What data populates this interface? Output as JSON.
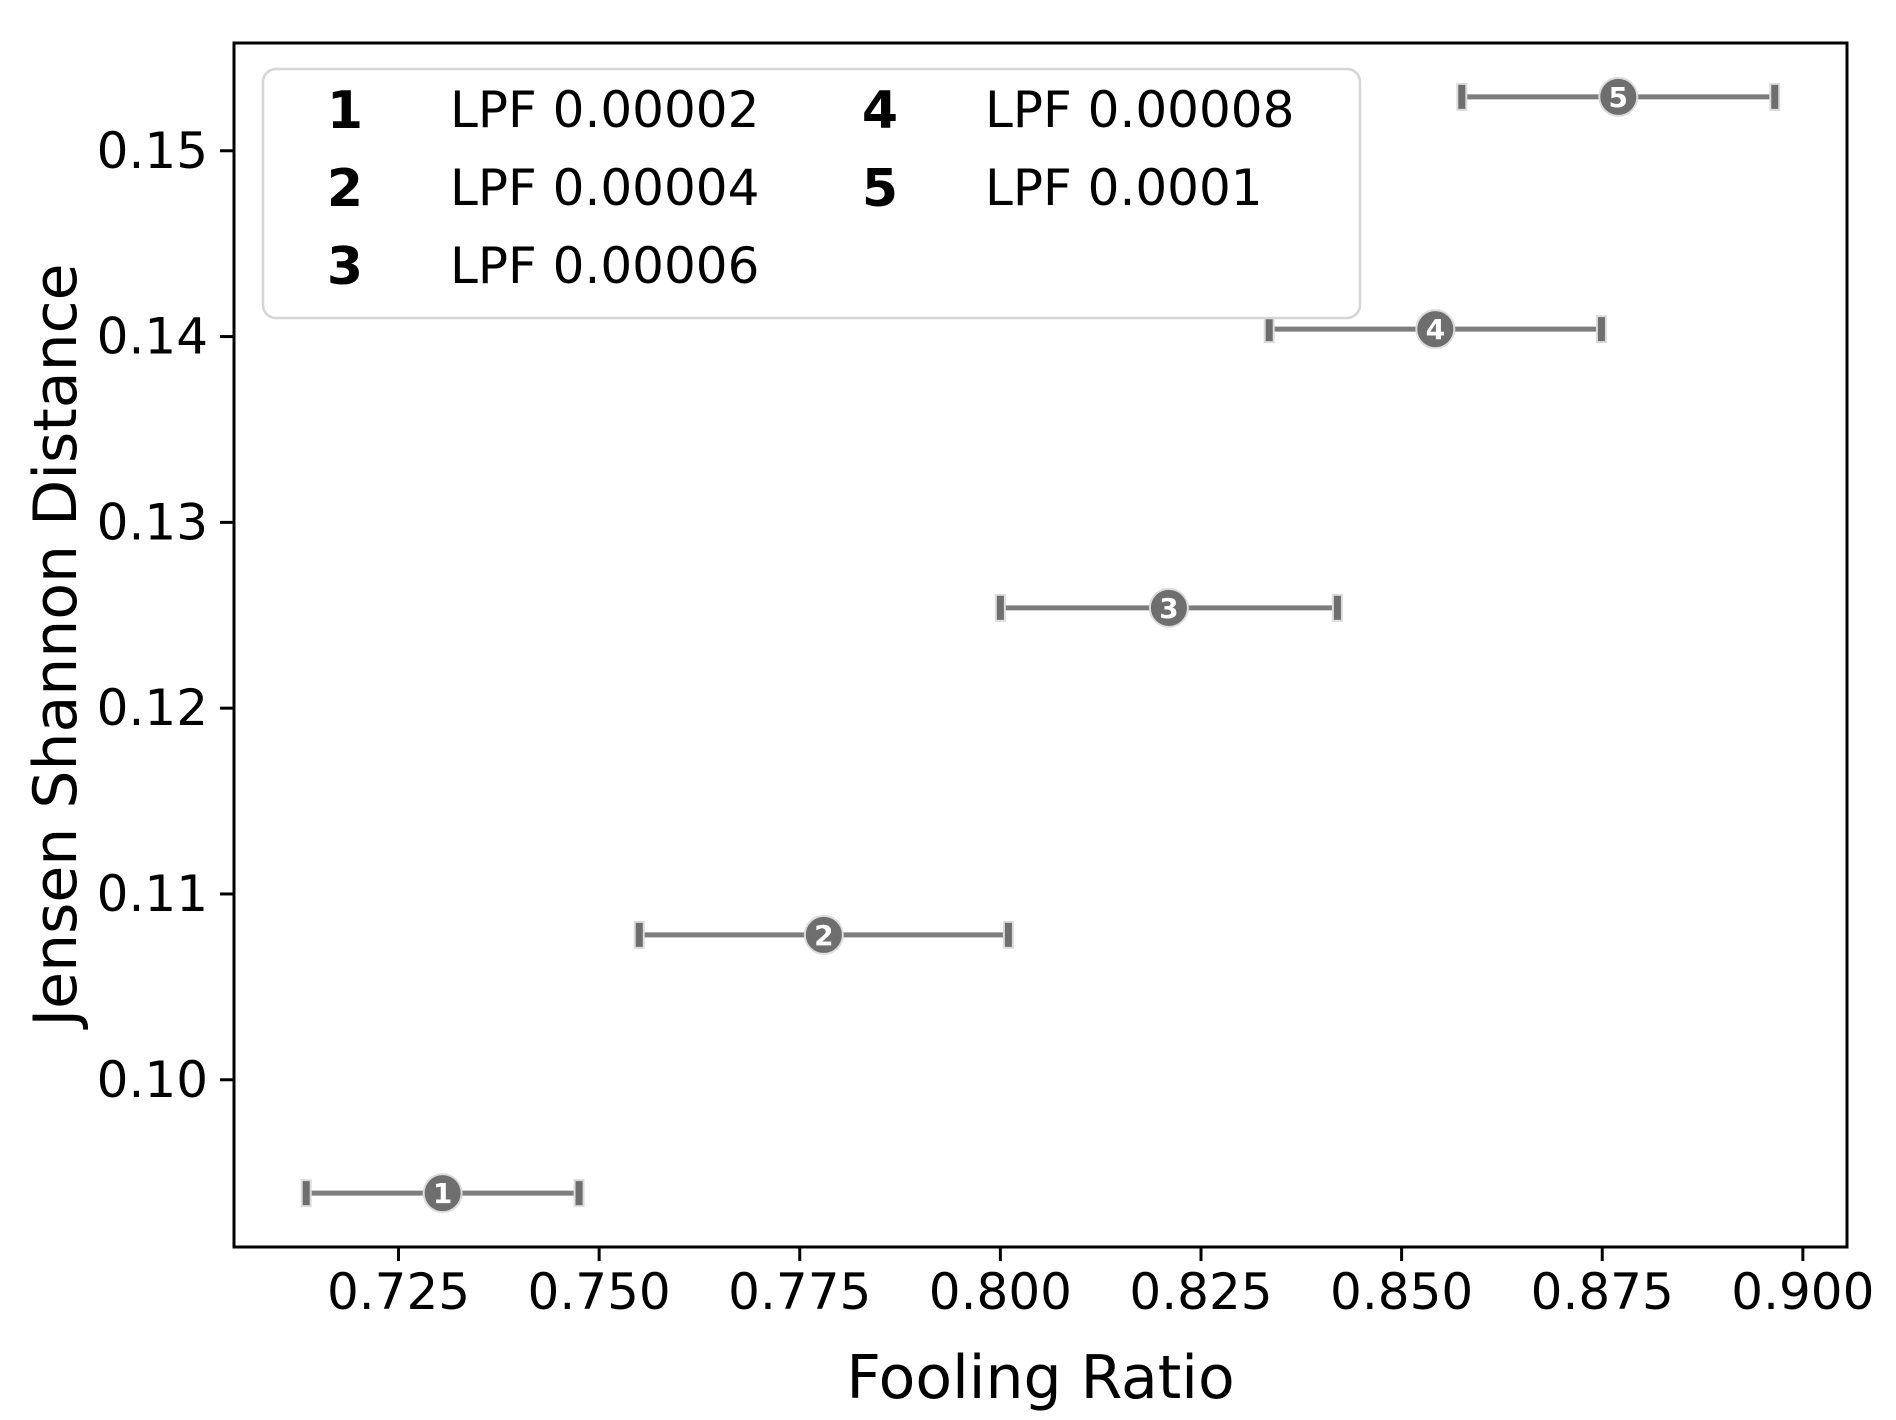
{
  "chart_data": {
    "type": "scatter",
    "title": "",
    "xlabel": "Fooling Ratio",
    "ylabel": "Jensen Shannon Distance",
    "xlim": [
      0.7045,
      0.9055
    ],
    "ylim": [
      0.091,
      0.1558
    ],
    "x_ticks": [
      0.725,
      0.75,
      0.775,
      0.8,
      0.825,
      0.85,
      0.875,
      0.9
    ],
    "x_tick_labels": [
      "0.725",
      "0.750",
      "0.775",
      "0.800",
      "0.825",
      "0.850",
      "0.875",
      "0.900"
    ],
    "y_ticks": [
      0.1,
      0.11,
      0.12,
      0.13,
      0.14,
      0.15
    ],
    "y_tick_labels": [
      "0.10",
      "0.11",
      "0.12",
      "0.13",
      "0.14",
      "0.15"
    ],
    "grid": false,
    "legend_position": "upper-left",
    "legend_columns": 2,
    "series": [
      {
        "marker": "1",
        "label": "LPF 0.00002",
        "x": 0.7305,
        "y": 0.0939,
        "xerr": 0.017
      },
      {
        "marker": "2",
        "label": "LPF 0.00004",
        "x": 0.778,
        "y": 0.1078,
        "xerr": 0.023
      },
      {
        "marker": "3",
        "label": "LPF 0.00006",
        "x": 0.821,
        "y": 0.1254,
        "xerr": 0.021
      },
      {
        "marker": "4",
        "label": "LPF 0.00008",
        "x": 0.8542,
        "y": 0.1404,
        "xerr": 0.0207
      },
      {
        "marker": "5",
        "label": "LPF 0.0001",
        "x": 0.877,
        "y": 0.1529,
        "xerr": 0.0195
      }
    ],
    "colors": {
      "background": "#ffffff",
      "axis": "#000000",
      "tick_text": "#000000",
      "marker_fill": "#6e6e6e",
      "marker_edge": "#dcdcdc",
      "marker_text": "#ffffff",
      "error_bar": "#7d7d7d",
      "error_cap": "#6e6e6e",
      "legend_border": "#d5d5d5",
      "legend_bg": "#ffffff",
      "legend_text": "#000000"
    }
  }
}
